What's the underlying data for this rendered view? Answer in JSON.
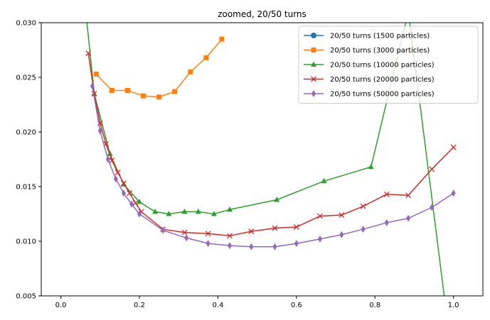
{
  "chart_data": {
    "type": "line",
    "title": "zoomed, 20/50 turns",
    "xlabel": "",
    "ylabel": "",
    "xlim": [
      -0.05,
      1.075
    ],
    "ylim": [
      0.005,
      0.03
    ],
    "xticks": [
      0.0,
      0.2,
      0.4,
      0.6,
      0.8,
      1.0
    ],
    "xtick_labels": [
      "0.0",
      "0.2",
      "0.4",
      "0.6",
      "0.8",
      "1.0"
    ],
    "yticks": [
      0.005,
      0.01,
      0.015,
      0.02,
      0.025,
      0.03
    ],
    "ytick_labels": [
      "0.005",
      "0.010",
      "0.015",
      "0.020",
      "0.025",
      "0.030"
    ],
    "grid": false,
    "legend_position": "top-right",
    "series": [
      {
        "name": "20/50 turns (1500 particles)",
        "color": "#1f77b4",
        "marker": "circle",
        "x": [],
        "y": []
      },
      {
        "name": "20/50 turns (3000 particles)",
        "color": "#ff7f0e",
        "marker": "square",
        "x": [
          0.09,
          0.13,
          0.17,
          0.21,
          0.25,
          0.29,
          0.33,
          0.37,
          0.41
        ],
        "y": [
          0.0253,
          0.0238,
          0.0238,
          0.0233,
          0.0232,
          0.0237,
          0.0255,
          0.0268,
          0.0285
        ]
      },
      {
        "name": "20/50 turns (10000 particles)",
        "color": "#2ca02c",
        "marker": "triangle",
        "x": [
          0.055,
          0.085,
          0.125,
          0.16,
          0.2,
          0.24,
          0.275,
          0.315,
          0.35,
          0.39,
          0.43,
          0.55,
          0.67,
          0.79,
          0.885,
          0.98
        ],
        "y": [
          0.034,
          0.0235,
          0.018,
          0.0152,
          0.0136,
          0.0127,
          0.0125,
          0.0127,
          0.0127,
          0.0125,
          0.0129,
          0.0138,
          0.0155,
          0.0168,
          0.031,
          0.004
        ]
      },
      {
        "name": "20/50 turns (20000 particles)",
        "color": "#d62728",
        "marker": "x",
        "x": [
          0.07,
          0.085,
          0.1,
          0.115,
          0.13,
          0.145,
          0.16,
          0.175,
          0.19,
          0.205,
          0.26,
          0.315,
          0.375,
          0.43,
          0.485,
          0.545,
          0.6,
          0.66,
          0.715,
          0.77,
          0.83,
          0.885,
          0.945,
          1.0
        ],
        "y": [
          0.0272,
          0.0235,
          0.0208,
          0.0189,
          0.0174,
          0.0163,
          0.0153,
          0.0144,
          0.0135,
          0.0127,
          0.0111,
          0.0108,
          0.0107,
          0.0105,
          0.0109,
          0.0112,
          0.0113,
          0.0123,
          0.0124,
          0.0132,
          0.0143,
          0.0142,
          0.0166,
          0.0186
        ]
      },
      {
        "name": "20/50 turns (50000 particles)",
        "color": "#9467bd",
        "marker": "thin_diamond",
        "x": [
          0.08,
          0.1,
          0.12,
          0.14,
          0.16,
          0.18,
          0.2,
          0.26,
          0.32,
          0.375,
          0.43,
          0.485,
          0.545,
          0.6,
          0.66,
          0.715,
          0.77,
          0.83,
          0.885,
          0.945,
          1.0
        ],
        "y": [
          0.0242,
          0.0201,
          0.0175,
          0.0157,
          0.0144,
          0.0134,
          0.0125,
          0.011,
          0.0103,
          0.0098,
          0.0096,
          0.0095,
          0.0095,
          0.0098,
          0.0102,
          0.0106,
          0.0111,
          0.0117,
          0.0121,
          0.0131,
          0.0144
        ]
      }
    ]
  }
}
